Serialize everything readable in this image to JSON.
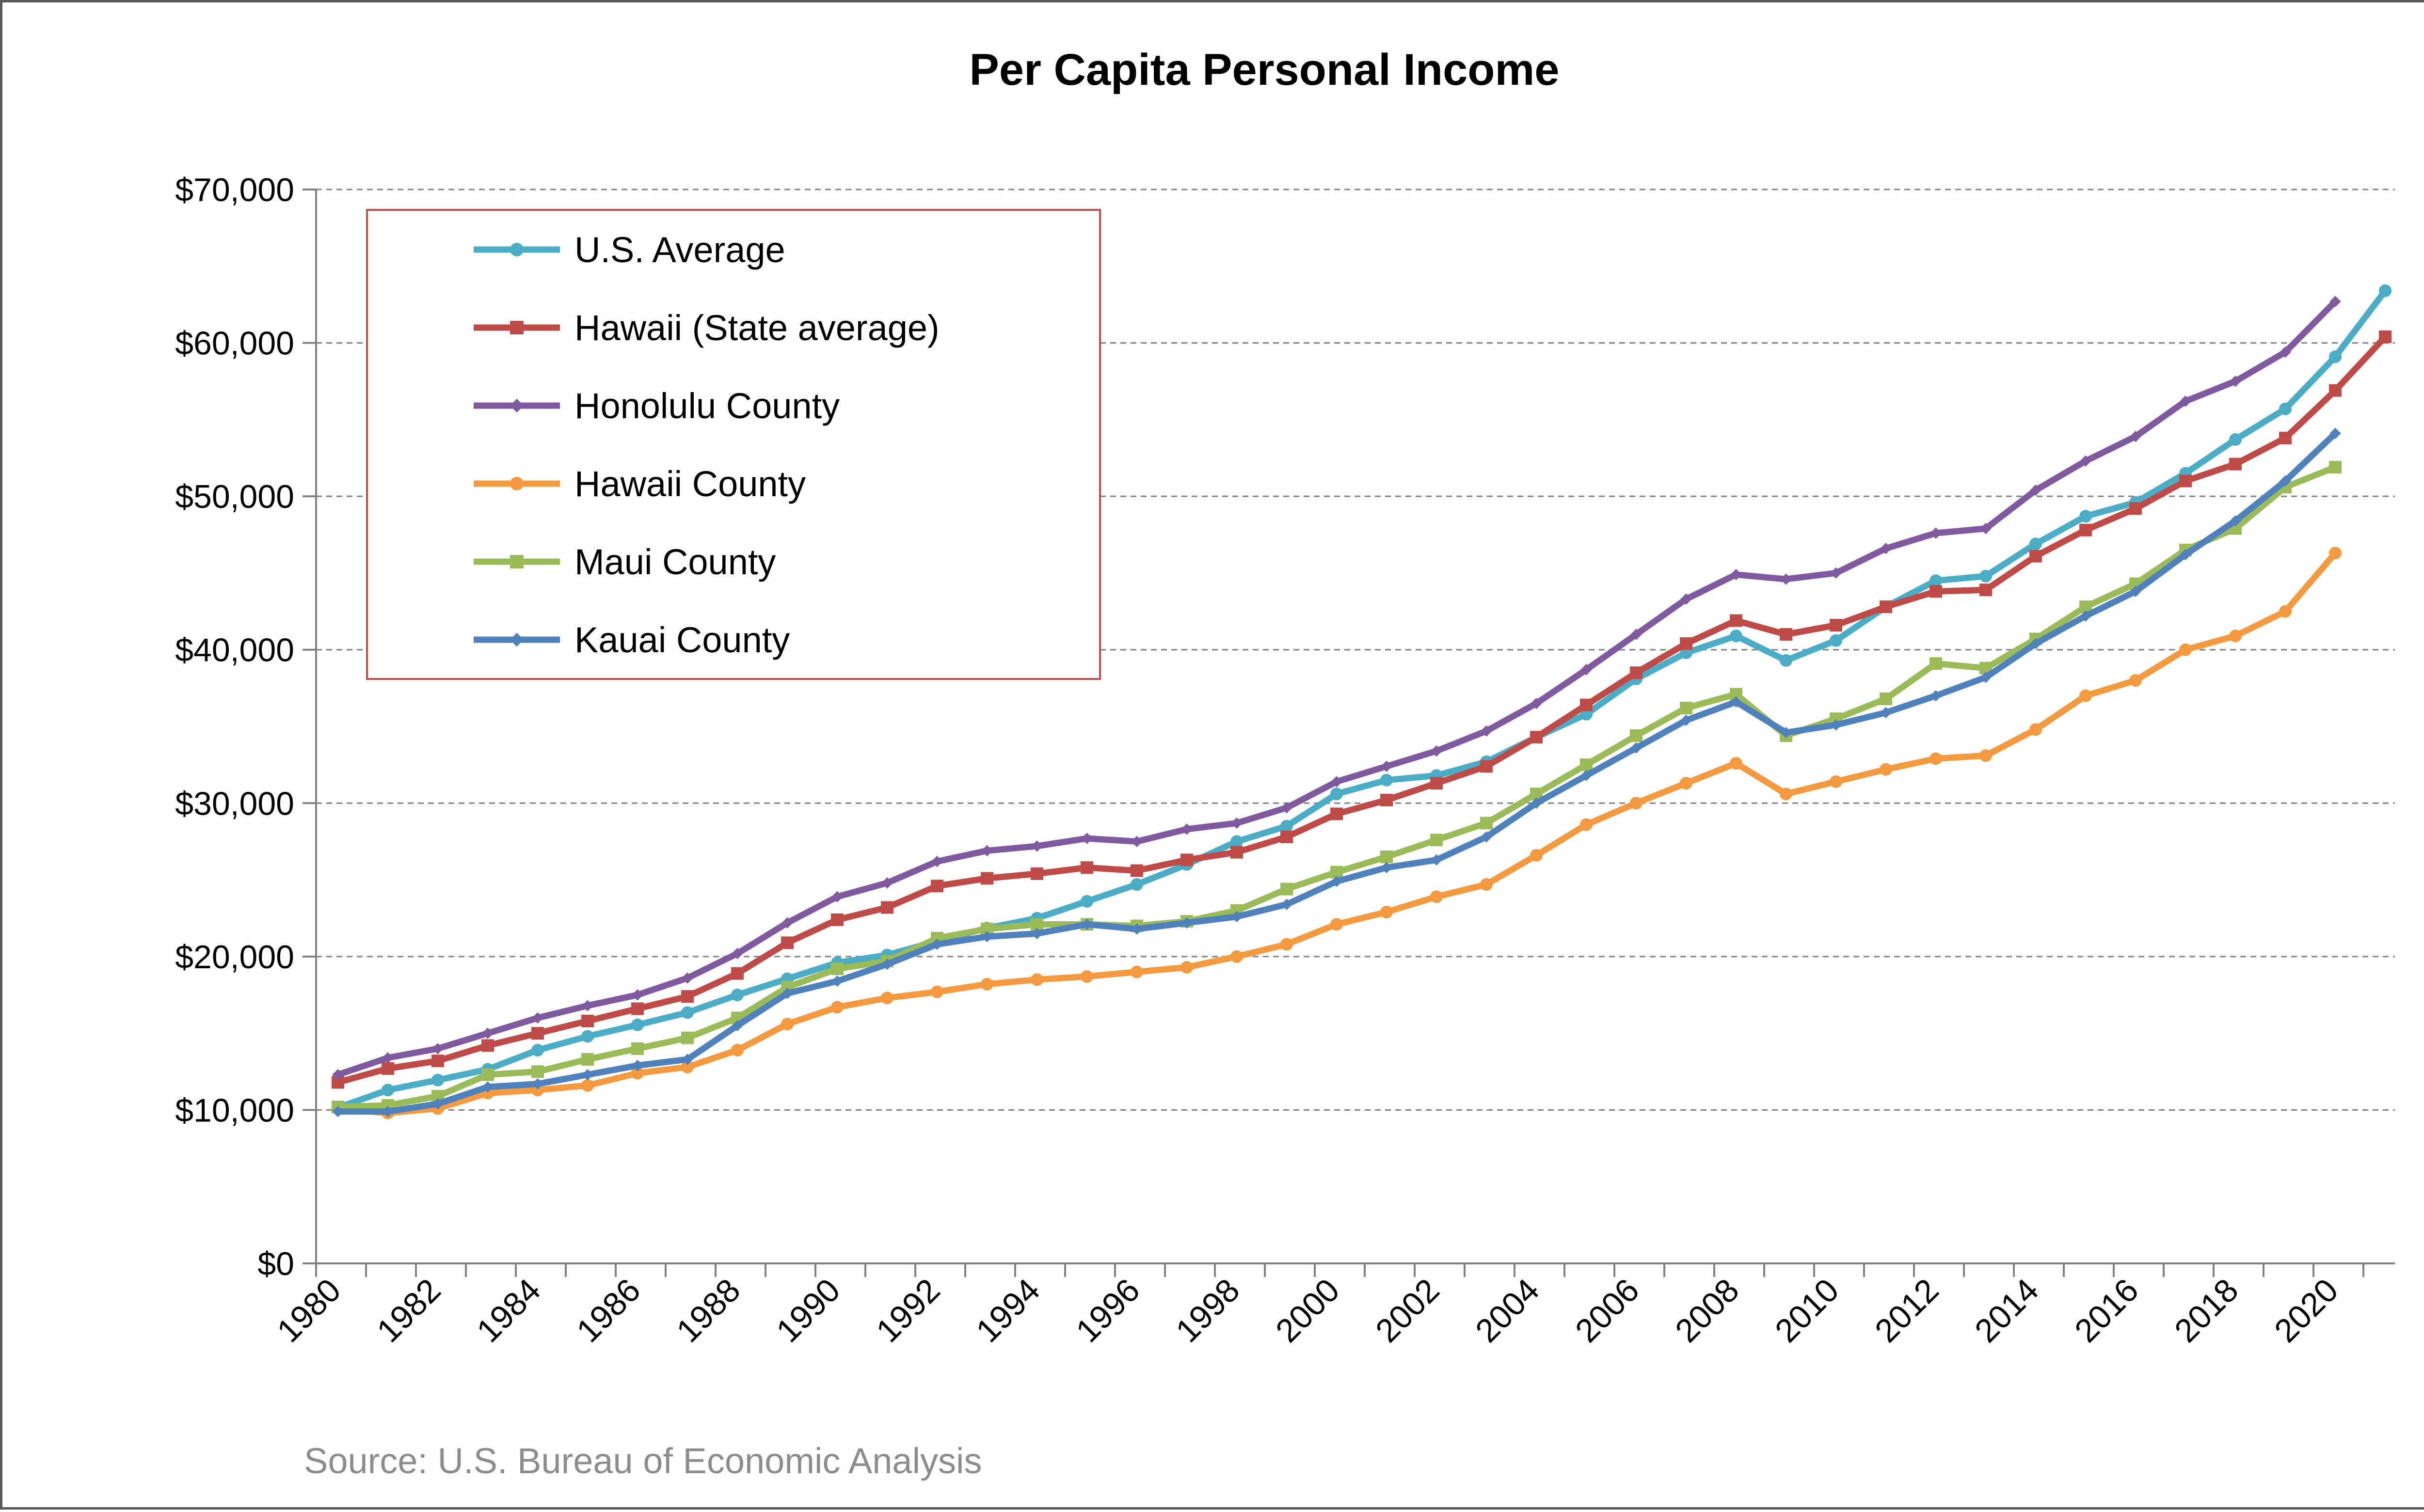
{
  "chart_data": {
    "type": "line",
    "title": "Per Capita Personal Income",
    "source": "Source: U.S. Bureau of Economic Analysis",
    "xlabel": "",
    "ylabel": "",
    "ylim": [
      0,
      70000
    ],
    "yticks": [
      "$0",
      "$10,000",
      "$20,000",
      "$30,000",
      "$40,000",
      "$50,000",
      "$60,000",
      "$70,000"
    ],
    "ytick_values": [
      0,
      10000,
      20000,
      30000,
      40000,
      50000,
      60000,
      70000
    ],
    "xlim": [
      1980,
      2022
    ],
    "xticks": [
      "1980",
      "1982",
      "1984",
      "1986",
      "1988",
      "1990",
      "1992",
      "1994",
      "1996",
      "1998",
      "2000",
      "2002",
      "2004",
      "2006",
      "2008",
      "2010",
      "2012",
      "2014",
      "2016",
      "2018",
      "2020"
    ],
    "xtick_values": [
      1980,
      1982,
      1984,
      1986,
      1988,
      1990,
      1992,
      1994,
      1996,
      1998,
      2000,
      2002,
      2004,
      2006,
      2008,
      2010,
      2012,
      2014,
      2016,
      2018,
      2020
    ],
    "grid": "horizontal dashed",
    "legend_position": "top-left",
    "series": [
      {
        "name": "U.S. Average",
        "color": "#4bacc6",
        "marker": "circle",
        "x": [
          1980,
          1981,
          1982,
          1983,
          1984,
          1985,
          1986,
          1987,
          1988,
          1989,
          1990,
          1991,
          1992,
          1993,
          1994,
          1995,
          1996,
          1997,
          1998,
          1999,
          2000,
          2001,
          2002,
          2003,
          2004,
          2005,
          2006,
          2007,
          2008,
          2009,
          2010,
          2011,
          2012,
          2013,
          2014,
          2015,
          2016,
          2017,
          2018,
          2019,
          2020,
          2021
        ],
        "values": [
          10150,
          11300,
          11950,
          12650,
          13900,
          14800,
          15550,
          16350,
          17500,
          18550,
          19600,
          20100,
          21000,
          21850,
          22500,
          23600,
          24700,
          26000,
          27500,
          28500,
          30600,
          31500,
          31800,
          32700,
          34300,
          35800,
          38100,
          39800,
          40900,
          39300,
          40600,
          42800,
          44500,
          44800,
          46900,
          48700,
          49600,
          51500,
          53700,
          55700,
          59100,
          63400
        ]
      },
      {
        "name": "Hawaii (State average)",
        "color": "#be4b48",
        "marker": "square",
        "x": [
          1980,
          1981,
          1982,
          1983,
          1984,
          1985,
          1986,
          1987,
          1988,
          1989,
          1990,
          1991,
          1992,
          1993,
          1994,
          1995,
          1996,
          1997,
          1998,
          1999,
          2000,
          2001,
          2002,
          2003,
          2004,
          2005,
          2006,
          2007,
          2008,
          2009,
          2010,
          2011,
          2012,
          2013,
          2014,
          2015,
          2016,
          2017,
          2018,
          2019,
          2020,
          2021
        ],
        "values": [
          11800,
          12700,
          13200,
          14200,
          15000,
          15800,
          16600,
          17400,
          18900,
          20900,
          22400,
          23200,
          24600,
          25100,
          25400,
          25800,
          25600,
          26300,
          26800,
          27800,
          29300,
          30200,
          31300,
          32400,
          34300,
          36400,
          38500,
          40400,
          41900,
          41000,
          41600,
          42800,
          43800,
          43900,
          46100,
          47800,
          49200,
          51000,
          52100,
          53800,
          56900,
          60400
        ]
      },
      {
        "name": "Honolulu County",
        "color": "#7f5a9e",
        "marker": "diamond",
        "x": [
          1980,
          1981,
          1982,
          1983,
          1984,
          1985,
          1986,
          1987,
          1988,
          1989,
          1990,
          1991,
          1992,
          1993,
          1994,
          1995,
          1996,
          1997,
          1998,
          1999,
          2000,
          2001,
          2002,
          2003,
          2004,
          2005,
          2006,
          2007,
          2008,
          2009,
          2010,
          2011,
          2012,
          2013,
          2014,
          2015,
          2016,
          2017,
          2018,
          2019,
          2020
        ],
        "values": [
          12300,
          13400,
          14000,
          15000,
          16000,
          16800,
          17500,
          18600,
          20200,
          22200,
          23900,
          24800,
          26200,
          26900,
          27200,
          27700,
          27500,
          28300,
          28700,
          29700,
          31400,
          32400,
          33400,
          34700,
          36500,
          38700,
          41000,
          43300,
          44900,
          44600,
          45000,
          46600,
          47600,
          47900,
          50400,
          52300,
          53900,
          56200,
          57500,
          59400,
          62700
        ]
      },
      {
        "name": "Hawaii County",
        "color": "#f39a41",
        "marker": "circle",
        "x": [
          1980,
          1981,
          1982,
          1983,
          1984,
          1985,
          1986,
          1987,
          1988,
          1989,
          1990,
          1991,
          1992,
          1993,
          1994,
          1995,
          1996,
          1997,
          1998,
          1999,
          2000,
          2001,
          2002,
          2003,
          2004,
          2005,
          2006,
          2007,
          2008,
          2009,
          2010,
          2011,
          2012,
          2013,
          2014,
          2015,
          2016,
          2017,
          2018,
          2019,
          2020
        ],
        "values": [
          10100,
          9800,
          10100,
          11100,
          11300,
          11600,
          12400,
          12800,
          13900,
          15600,
          16700,
          17300,
          17700,
          18200,
          18500,
          18700,
          19000,
          19300,
          20000,
          20800,
          22100,
          22900,
          23900,
          24700,
          26600,
          28600,
          30000,
          31300,
          32600,
          30600,
          31400,
          32200,
          32900,
          33100,
          34800,
          37000,
          38000,
          40000,
          40900,
          42500,
          46300
        ]
      },
      {
        "name": "Maui County",
        "color": "#9bbb59",
        "marker": "square",
        "x": [
          1980,
          1981,
          1982,
          1983,
          1984,
          1985,
          1986,
          1987,
          1988,
          1989,
          1990,
          1991,
          1992,
          1993,
          1994,
          1995,
          1996,
          1997,
          1998,
          1999,
          2000,
          2001,
          2002,
          2003,
          2004,
          2005,
          2006,
          2007,
          2008,
          2009,
          2010,
          2011,
          2012,
          2013,
          2014,
          2015,
          2016,
          2017,
          2018,
          2019,
          2020
        ],
        "values": [
          10200,
          10300,
          10900,
          12300,
          12500,
          13300,
          14000,
          14700,
          16000,
          18000,
          19200,
          19700,
          21200,
          21800,
          22100,
          22100,
          22000,
          22300,
          23000,
          24400,
          25500,
          26500,
          27600,
          28700,
          30600,
          32500,
          34400,
          36200,
          37100,
          34400,
          35500,
          36800,
          39100,
          38800,
          40700,
          42800,
          44300,
          46500,
          47900,
          50600,
          51900
        ]
      },
      {
        "name": "Kauai County",
        "color": "#4f81bd",
        "marker": "diamond",
        "x": [
          1980,
          1981,
          1982,
          1983,
          1984,
          1985,
          1986,
          1987,
          1988,
          1989,
          1990,
          1991,
          1992,
          1993,
          1994,
          1995,
          1996,
          1997,
          1998,
          1999,
          2000,
          2001,
          2002,
          2003,
          2004,
          2005,
          2006,
          2007,
          2008,
          2009,
          2010,
          2011,
          2012,
          2013,
          2014,
          2015,
          2016,
          2017,
          2018,
          2019,
          2020
        ],
        "values": [
          9900,
          9900,
          10400,
          11500,
          11700,
          12300,
          12900,
          13300,
          15500,
          17600,
          18400,
          19500,
          20800,
          21300,
          21500,
          22100,
          21800,
          22200,
          22600,
          23400,
          24900,
          25800,
          26300,
          27800,
          30000,
          31800,
          33600,
          35400,
          36600,
          34600,
          35100,
          35900,
          37000,
          38200,
          40400,
          42200,
          43800,
          46200,
          48400,
          51000,
          54100
        ]
      }
    ]
  }
}
